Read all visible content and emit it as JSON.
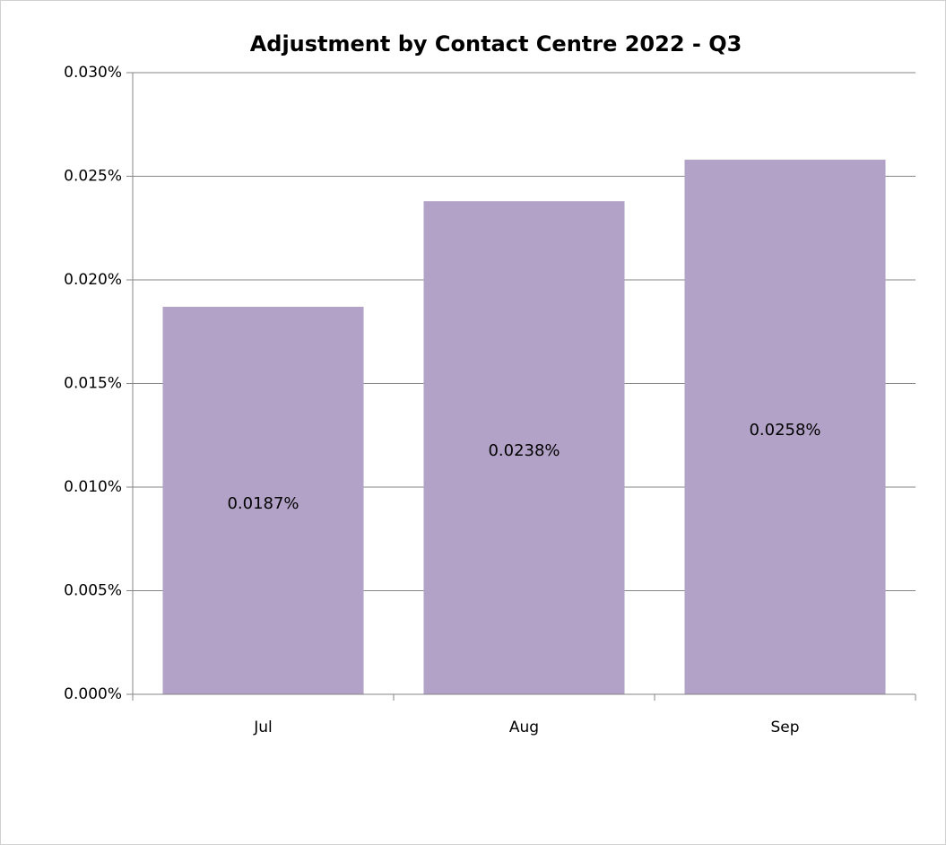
{
  "chart_data": {
    "type": "bar",
    "title": "Adjustment by Contact Centre   2022 - Q3",
    "categories": [
      "Jul",
      "Aug",
      "Sep"
    ],
    "values": [
      0.0187,
      0.0238,
      0.0258
    ],
    "value_labels": [
      "0.0187%",
      "0.0238%",
      "0.0258%"
    ],
    "color": "#b3a2c7",
    "ylim": [
      0,
      0.03
    ],
    "yticks": [
      {
        "value": 0,
        "label": "0.000%"
      },
      {
        "value": 0.005,
        "label": "0.005%"
      },
      {
        "value": 0.01,
        "label": "0.010%"
      },
      {
        "value": 0.015,
        "label": "0.015%"
      },
      {
        "value": 0.02,
        "label": "0.020%"
      },
      {
        "value": 0.025,
        "label": "0.025%"
      },
      {
        "value": 0.03,
        "label": "0.030%"
      }
    ],
    "grid": true
  }
}
